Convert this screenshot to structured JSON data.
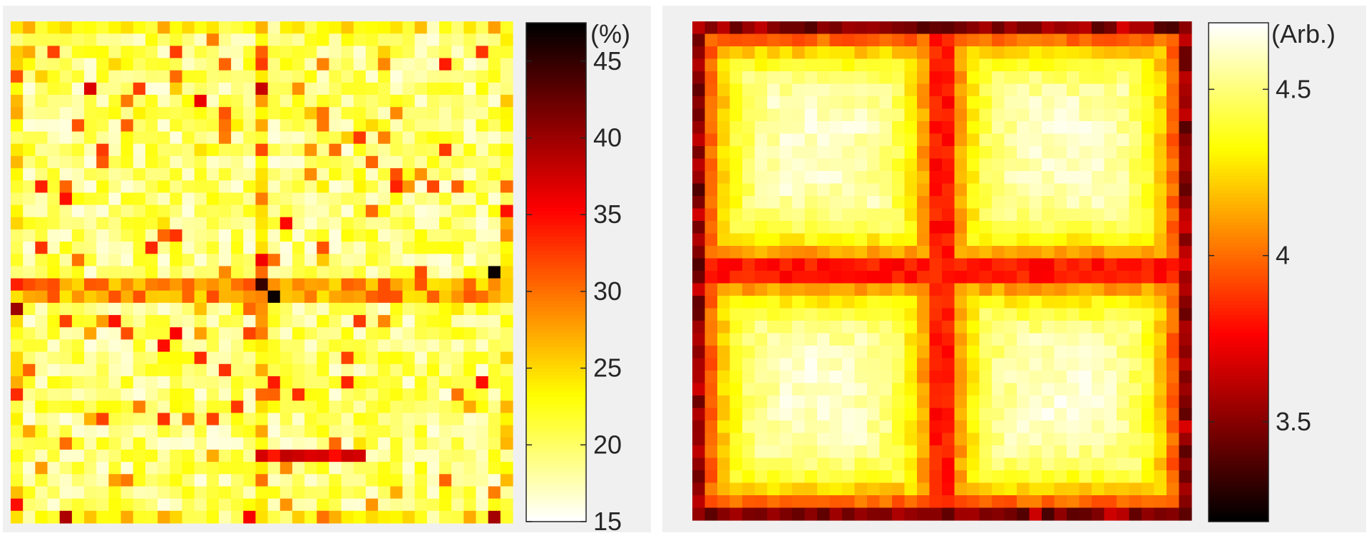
{
  "chart_data": [
    {
      "type": "heatmap",
      "grid": {
        "rows": 41,
        "cols": 41
      },
      "colormap": "hot",
      "colormap_reversed": true,
      "colorbar": {
        "unit_label": "(%)",
        "range": [
          15,
          47.5
        ],
        "ticks": [
          15,
          20,
          25,
          30,
          35,
          40,
          45
        ],
        "tick_labels": [
          "15",
          "20",
          "25",
          "30",
          "35",
          "40",
          "45"
        ]
      },
      "pattern": {
        "baseline": 20,
        "lines": [
          {
            "orientation": "horizontal",
            "row": 21,
            "value": 30
          },
          {
            "orientation": "horizontal",
            "row": 22,
            "value": 30
          },
          {
            "orientation": "vertical",
            "col": 20,
            "value": 29
          },
          {
            "orientation": "horizontal_segment",
            "row": 35,
            "from_col": 20,
            "to_col": 28,
            "value": 37
          }
        ],
        "hotspots": [
          {
            "row": 22,
            "col": 21,
            "value": 47
          },
          {
            "row": 21,
            "col": 20,
            "value": 45
          },
          {
            "row": 20,
            "col": 39,
            "value": 47
          },
          {
            "row": 5,
            "col": 20,
            "value": 38
          },
          {
            "row": 5,
            "col": 6,
            "value": 37
          }
        ]
      }
    },
    {
      "type": "heatmap",
      "grid": {
        "rows": 40,
        "cols": 40
      },
      "colormap": "hot",
      "colorbar": {
        "unit_label": "(Arb.)",
        "range": [
          3.2,
          4.7
        ],
        "ticks": [
          3.5,
          4,
          4.5
        ],
        "tick_labels": [
          "3.5",
          "4",
          "4.5"
        ]
      },
      "pattern": {
        "cell_quadrants": 4,
        "center_high": 4.65,
        "border_low": 3.6,
        "separator_row": 19,
        "separator_col": 19,
        "separator_value": 3.95
      }
    }
  ]
}
